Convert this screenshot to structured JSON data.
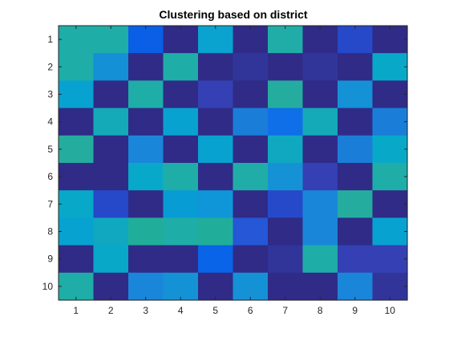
{
  "chart_data": {
    "type": "heatmap",
    "title": "Clustering based on district",
    "xlabel": "",
    "ylabel": "",
    "x_categories": [
      "1",
      "2",
      "3",
      "4",
      "5",
      "6",
      "7",
      "8",
      "9",
      "10"
    ],
    "y_categories": [
      "1",
      "2",
      "3",
      "4",
      "5",
      "6",
      "7",
      "8",
      "9",
      "10"
    ],
    "grid": false,
    "colormap": "parula",
    "cell_colors": [
      [
        "#1fada8",
        "#1fada8",
        "#0a5fe6",
        "#2f2b87",
        "#0aa3cf",
        "#2f2b87",
        "#20ada7",
        "#2f2b87",
        "#2549c9",
        "#2f2b87"
      ],
      [
        "#1fada8",
        "#1390d6",
        "#2f2b87",
        "#1fada8",
        "#2f2b87",
        "#31359a",
        "#2f2b87",
        "#31359a",
        "#2f2b87",
        "#08a9c8"
      ],
      [
        "#08a2d0",
        "#2f2b87",
        "#1fada8",
        "#2f2b87",
        "#3440b4",
        "#2f2b87",
        "#24ad9f",
        "#2f2b87",
        "#1592d6",
        "#2f2b87"
      ],
      [
        "#2f2b87",
        "#14aab7",
        "#2f2b87",
        "#08a2d0",
        "#2f2b87",
        "#1a7ed9",
        "#0f6fe8",
        "#14aab7",
        "#2f2b87",
        "#1a7ed9"
      ],
      [
        "#24ad9f",
        "#2f2b87",
        "#1a86d9",
        "#2f2b87",
        "#08a2d0",
        "#2f2b87",
        "#0fa8c0",
        "#2f2b87",
        "#1a7ed9",
        "#08a9c8"
      ],
      [
        "#2f2b87",
        "#2f2b87",
        "#08a9c8",
        "#1fada8",
        "#2f2b87",
        "#20ada7",
        "#1592d6",
        "#3440b4",
        "#2f2b87",
        "#1fada8"
      ],
      [
        "#08a9c8",
        "#2549c9",
        "#2f2b87",
        "#089cd4",
        "#0f96d8",
        "#2f2b87",
        "#2549c9",
        "#1a86d9",
        "#24ad9f",
        "#2f2b87"
      ],
      [
        "#08a2d0",
        "#0fa8c0",
        "#20ae9a",
        "#1fada8",
        "#20ae9a",
        "#2557d6",
        "#2f2b87",
        "#1a86d9",
        "#2f2b87",
        "#08a2d0"
      ],
      [
        "#2f2b87",
        "#08a9c8",
        "#2f2b87",
        "#2f2b87",
        "#0a64e8",
        "#2f2b87",
        "#31359a",
        "#1fada8",
        "#3440b4",
        "#3440b4"
      ],
      [
        "#1fada8",
        "#2f2b87",
        "#1a86d9",
        "#1592d6",
        "#2f2b87",
        "#1592d6",
        "#2f2b87",
        "#2f2b87",
        "#1a86d9",
        "#31359a"
      ]
    ]
  }
}
